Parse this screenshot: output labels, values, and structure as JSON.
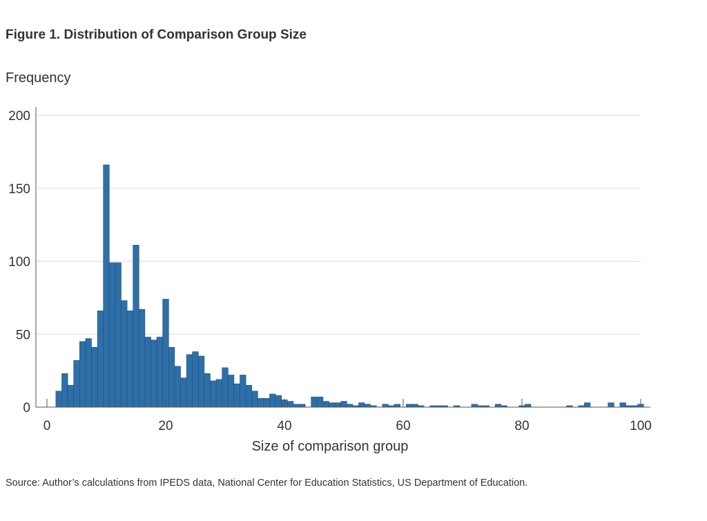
{
  "header": {
    "title": "Figure 1. Distribution of Comparison Group Size",
    "y_axis_label": "Frequency"
  },
  "footer": {
    "source": "Source: Author’s calculations from IPEDS data, National Center for Education Statistics, US Department of Education."
  },
  "colors": {
    "bar_fill": "#2e6fa8",
    "bar_stroke": "#1e4f7c",
    "grid": "#dcdcdc",
    "axis": "#555555",
    "text": "#333333"
  },
  "chart_data": {
    "type": "bar",
    "title": "Figure 1. Distribution of Comparison Group Size",
    "xlabel": "Size of comparison group",
    "ylabel": "Frequency",
    "xlim": [
      0,
      100
    ],
    "ylim": [
      0,
      200
    ],
    "x_ticks": [
      0,
      20,
      40,
      60,
      80,
      100
    ],
    "y_ticks": [
      0,
      50,
      100,
      150,
      200
    ],
    "grid": true,
    "bin_width": 1,
    "x": [
      2,
      3,
      4,
      5,
      6,
      7,
      8,
      9,
      10,
      11,
      12,
      13,
      14,
      15,
      16,
      17,
      18,
      19,
      20,
      21,
      22,
      23,
      24,
      25,
      26,
      27,
      28,
      29,
      30,
      31,
      32,
      33,
      34,
      35,
      36,
      37,
      38,
      39,
      40,
      41,
      42,
      43,
      44,
      45,
      46,
      47,
      48,
      49,
      50,
      51,
      52,
      53,
      54,
      55,
      56,
      57,
      58,
      59,
      60,
      61,
      62,
      63,
      64,
      65,
      66,
      67,
      68,
      69,
      70,
      71,
      72,
      73,
      74,
      75,
      76,
      77,
      78,
      79,
      80,
      81,
      82,
      83,
      84,
      85,
      86,
      87,
      88,
      89,
      90,
      91,
      92,
      93,
      94,
      95,
      96,
      97,
      98,
      99,
      100
    ],
    "values": [
      11,
      23,
      15,
      32,
      45,
      47,
      41,
      66,
      166,
      99,
      99,
      73,
      66,
      111,
      67,
      48,
      46,
      48,
      74,
      41,
      28,
      20,
      36,
      38,
      35,
      23,
      18,
      19,
      27,
      22,
      16,
      22,
      15,
      11,
      6,
      6,
      9,
      8,
      5,
      4,
      2,
      2,
      0,
      7,
      7,
      4,
      3,
      3,
      4,
      2,
      1,
      3,
      2,
      1,
      0,
      2,
      1,
      2,
      0,
      2,
      2,
      1,
      0,
      1,
      1,
      1,
      0,
      1,
      0,
      0,
      2,
      1,
      1,
      0,
      2,
      1,
      0,
      0,
      1,
      2,
      0,
      0,
      0,
      0,
      0,
      0,
      1,
      0,
      1,
      3,
      0,
      0,
      0,
      3,
      0,
      3,
      1,
      1,
      2
    ]
  }
}
